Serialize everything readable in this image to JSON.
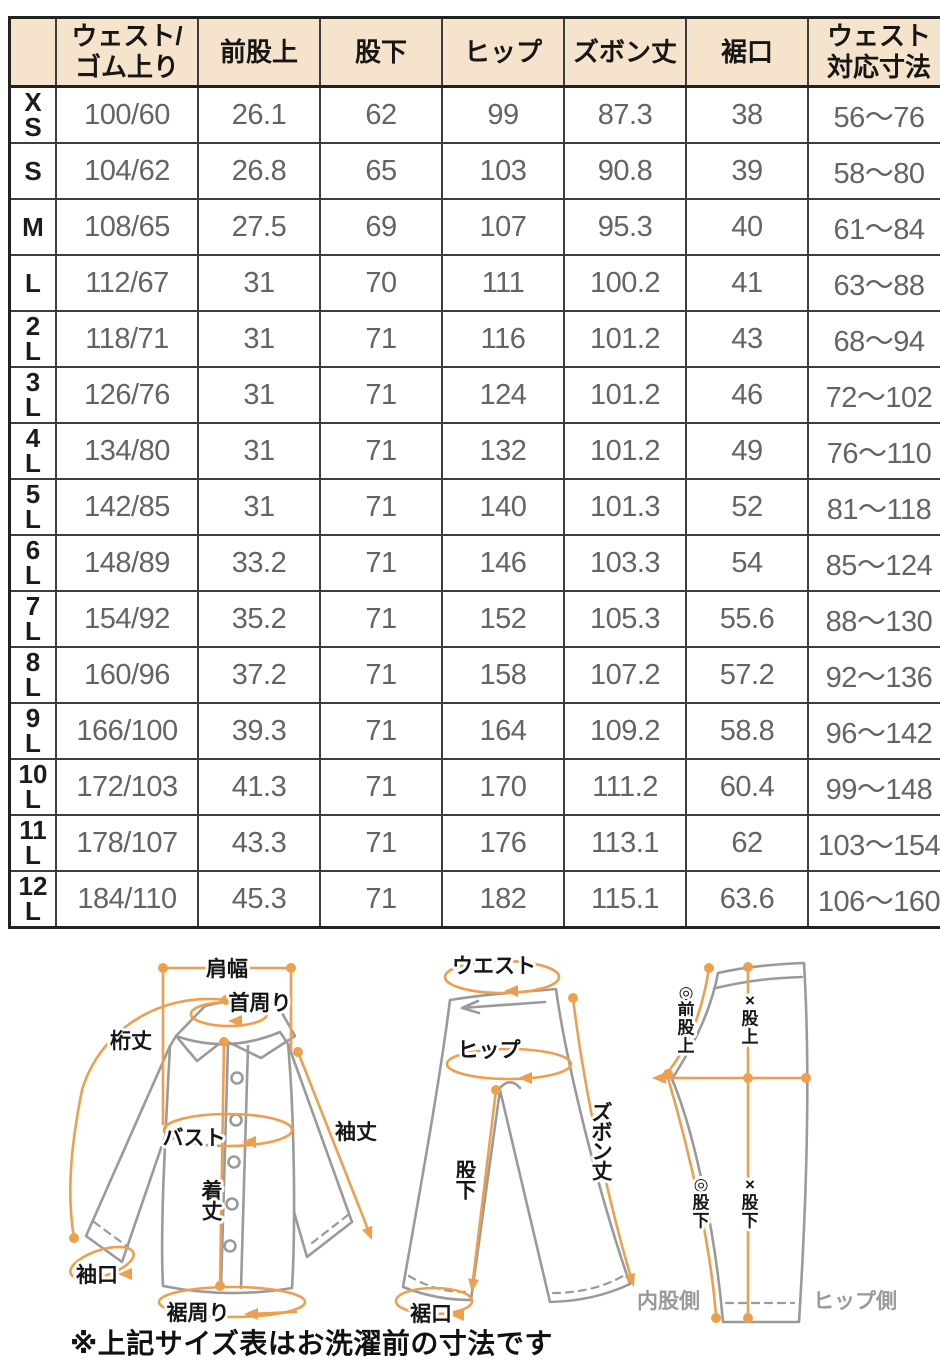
{
  "table": {
    "columns": [
      "",
      "ウェスト/\nゴム上り",
      "前股上",
      "股下",
      "ヒップ",
      "ズボン丈",
      "裾口",
      "ウェスト\n対応寸法"
    ],
    "rows": [
      {
        "size": "X\nS",
        "values": [
          "100/60",
          "26.1",
          "62",
          "99",
          "87.3",
          "38",
          "56〜76"
        ]
      },
      {
        "size": "S",
        "values": [
          "104/62",
          "26.8",
          "65",
          "103",
          "90.8",
          "39",
          "58〜80"
        ]
      },
      {
        "size": "M",
        "values": [
          "108/65",
          "27.5",
          "69",
          "107",
          "95.3",
          "40",
          "61〜84"
        ]
      },
      {
        "size": "L",
        "values": [
          "112/67",
          "31",
          "70",
          "111",
          "100.2",
          "41",
          "63〜88"
        ]
      },
      {
        "size": "2\nL",
        "values": [
          "118/71",
          "31",
          "71",
          "116",
          "101.2",
          "43",
          "68〜94"
        ]
      },
      {
        "size": "3\nL",
        "values": [
          "126/76",
          "31",
          "71",
          "124",
          "101.2",
          "46",
          "72〜102"
        ]
      },
      {
        "size": "4\nL",
        "values": [
          "134/80",
          "31",
          "71",
          "132",
          "101.2",
          "49",
          "76〜110"
        ]
      },
      {
        "size": "5\nL",
        "values": [
          "142/85",
          "31",
          "71",
          "140",
          "101.3",
          "52",
          "81〜118"
        ]
      },
      {
        "size": "6\nL",
        "values": [
          "148/89",
          "33.2",
          "71",
          "146",
          "103.3",
          "54",
          "85〜124"
        ]
      },
      {
        "size": "7\nL",
        "values": [
          "154/92",
          "35.2",
          "71",
          "152",
          "105.3",
          "55.6",
          "88〜130"
        ]
      },
      {
        "size": "8\nL",
        "values": [
          "160/96",
          "37.2",
          "71",
          "158",
          "107.2",
          "57.2",
          "92〜136"
        ]
      },
      {
        "size": "9\nL",
        "values": [
          "166/100",
          "39.3",
          "71",
          "164",
          "109.2",
          "58.8",
          "96〜142"
        ]
      },
      {
        "size": "10\nL",
        "values": [
          "172/103",
          "41.3",
          "71",
          "170",
          "111.2",
          "60.4",
          "99〜148"
        ]
      },
      {
        "size": "11\nL",
        "values": [
          "178/107",
          "43.3",
          "71",
          "176",
          "113.1",
          "62",
          "103〜154"
        ]
      },
      {
        "size": "12\nL",
        "values": [
          "184/110",
          "45.3",
          "71",
          "182",
          "115.1",
          "63.6",
          "106〜160"
        ]
      }
    ]
  },
  "diagrams": {
    "shirt": {
      "shoulder_width": "肩幅",
      "neck_around": "首周り",
      "sleeve_from_center": "桁丈",
      "bust": "バスト",
      "body_length": "着丈",
      "sleeve_length": "袖丈",
      "cuff_opening": "袖口",
      "hem_around": "裾周り"
    },
    "pants_front": {
      "waist": "ウエスト",
      "hip": "ヒップ",
      "pants_length": "ズボン丈",
      "inseam": "股下",
      "hem_opening": "裾口"
    },
    "pants_side": {
      "front_rise": "◎前股上",
      "rise": "×股上",
      "inseam_front": "◎股下",
      "inseam_side": "×股下",
      "inner_side": "内股側",
      "hip_side": "ヒップ側"
    }
  },
  "note": "※上記サイズ表はお洗濯前の寸法です",
  "colors": {
    "header_bg": "#f6e3cb",
    "accent_orange": "#ec9f4f",
    "outline_gray": "#9a9a9a",
    "data_text": "#646464",
    "border_dark": "#222222"
  }
}
